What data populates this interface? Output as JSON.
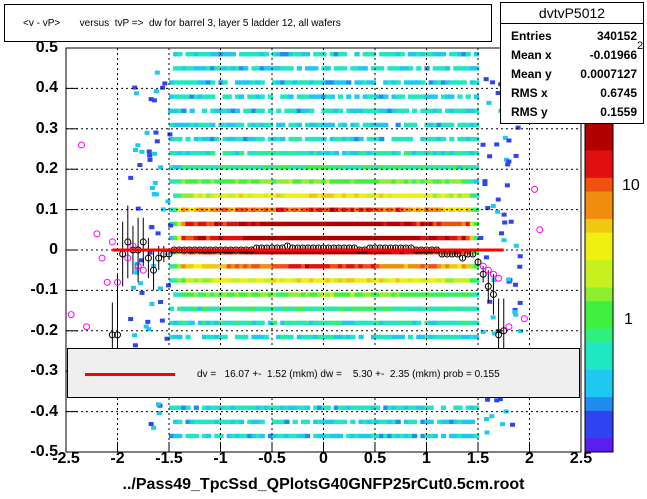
{
  "chart_data": {
    "type": "heatmap",
    "title": "<v - vP>       versus  tvP =>  dw for barrel 3, layer 5 ladder 12, all wafers",
    "xlabel": "../Pass49_TpcSsd_QPlotsG40GNFP25rCut0.5cm.root",
    "ylabel": "",
    "xlim": [
      -2.5,
      2.5
    ],
    "ylim": [
      -0.5,
      0.5
    ],
    "x_ticks": [
      "-2.5",
      "-2",
      "-1.5",
      "-1",
      "-0.5",
      "0",
      "0.5",
      "1",
      "1.5",
      "2",
      "2.5"
    ],
    "y_ticks": [
      "0.5",
      "0.4",
      "0.3",
      "0.2",
      "0.1",
      "0",
      "-0.1",
      "-0.2",
      "-0.3",
      "-0.4",
      "-0.5"
    ],
    "z_ticks": [
      "10",
      "1"
    ],
    "z_exponent_label": "2",
    "z_scale": "log",
    "grid": true,
    "stats": {
      "name": "dvtvP5012",
      "rows": [
        {
          "label": "Entries",
          "value": "340152"
        },
        {
          "label": "Mean x",
          "value": "-0.01966"
        },
        {
          "label": "Mean y",
          "value": "0.0007127"
        },
        {
          "label": "RMS x",
          "value": "0.6745"
        },
        {
          "label": "RMS y",
          "value": "0.1559"
        }
      ]
    },
    "fit": {
      "text": "dv =   16.07 +-  1.52 (mkm) dw =    5.30 +-  2.35 (mkm) prob = 0.155",
      "color": "#ff0000",
      "x_range": [
        -2.05,
        1.75
      ],
      "y": 0.0
    },
    "profile_black": {
      "x": [
        -2.05,
        -2.0,
        -1.95,
        -1.9,
        -1.85,
        -1.8,
        -1.75,
        -1.7,
        -1.65,
        -1.6,
        -1.55,
        -1.5,
        -1.45,
        -1.4,
        -1.35,
        -1.3,
        -1.25,
        -1.2,
        -1.15,
        -1.1,
        -1.05,
        -1.0,
        -0.95,
        -0.9,
        -0.85,
        -0.8,
        -0.75,
        -0.7,
        -0.65,
        -0.6,
        -0.55,
        -0.5,
        -0.45,
        -0.4,
        -0.35,
        -0.3,
        -0.25,
        -0.2,
        -0.15,
        -0.1,
        -0.05,
        0.0,
        0.05,
        0.1,
        0.15,
        0.2,
        0.25,
        0.3,
        0.35,
        0.4,
        0.45,
        0.5,
        0.55,
        0.6,
        0.65,
        0.7,
        0.75,
        0.8,
        0.85,
        0.9,
        0.95,
        1.0,
        1.05,
        1.1,
        1.15,
        1.2,
        1.25,
        1.3,
        1.35,
        1.4,
        1.45,
        1.5,
        1.55,
        1.6,
        1.65,
        1.7,
        1.75
      ],
      "y": [
        -0.21,
        -0.21,
        -0.01,
        0.02,
        0.0,
        0.0,
        0.02,
        -0.02,
        -0.05,
        -0.02,
        -0.01,
        -0.01,
        0.0,
        0.0,
        0.0,
        0.0,
        0.0,
        0.0,
        0.0,
        0.0,
        0.0,
        0.0,
        0.0,
        0.0,
        0.0,
        0.0,
        0.0,
        0.0,
        0.005,
        0.005,
        0.005,
        0.005,
        0.005,
        0.005,
        0.01,
        0.005,
        0.005,
        0.005,
        0.005,
        0.005,
        0.005,
        0.005,
        0.005,
        0.005,
        0.005,
        0.005,
        0.005,
        0.005,
        0.0,
        0.0,
        0.005,
        0.005,
        0.005,
        0.005,
        0.005,
        0.005,
        0.005,
        0.005,
        0.005,
        0.0,
        0.0,
        0.0,
        0.0,
        0.0,
        -0.01,
        -0.01,
        -0.01,
        -0.01,
        -0.02,
        -0.01,
        -0.01,
        -0.03,
        -0.06,
        -0.09,
        -0.11,
        -0.21,
        -0.2
      ],
      "err": [
        0.08,
        0.15,
        0.08,
        0.09,
        0.06,
        0.08,
        0.06,
        0.05,
        0.05,
        0.03,
        0.02,
        0.01,
        0.005,
        0.005,
        0.005,
        0.005,
        0.005,
        0.005,
        0.005,
        0.005,
        0.005,
        0.005,
        0.005,
        0.005,
        0.005,
        0.005,
        0.005,
        0.005,
        0.005,
        0.005,
        0.005,
        0.005,
        0.005,
        0.005,
        0.005,
        0.005,
        0.005,
        0.005,
        0.005,
        0.005,
        0.005,
        0.005,
        0.005,
        0.005,
        0.005,
        0.005,
        0.005,
        0.005,
        0.005,
        0.005,
        0.005,
        0.005,
        0.005,
        0.005,
        0.005,
        0.005,
        0.005,
        0.005,
        0.005,
        0.005,
        0.005,
        0.005,
        0.005,
        0.005,
        0.005,
        0.005,
        0.005,
        0.005,
        0.005,
        0.005,
        0.005,
        0.01,
        0.02,
        0.04,
        0.05,
        0.09,
        0.08
      ]
    },
    "profile_magenta": {
      "x": [
        -2.45,
        -2.35,
        -2.3,
        -2.2,
        -2.15,
        -2.1,
        -2.05,
        -2.0,
        -1.9,
        -1.85,
        -1.8,
        -1.75,
        1.55,
        1.6,
        1.65,
        1.7,
        1.8,
        1.95,
        2.05,
        2.1
      ],
      "y": [
        -0.16,
        0.26,
        -0.19,
        0.04,
        -0.02,
        -0.08,
        0.02,
        -0.08,
        -0.02,
        0.01,
        -0.04,
        -0.05,
        -0.04,
        -0.05,
        -0.06,
        -0.07,
        -0.19,
        -0.17,
        0.15,
        0.05
      ]
    }
  }
}
